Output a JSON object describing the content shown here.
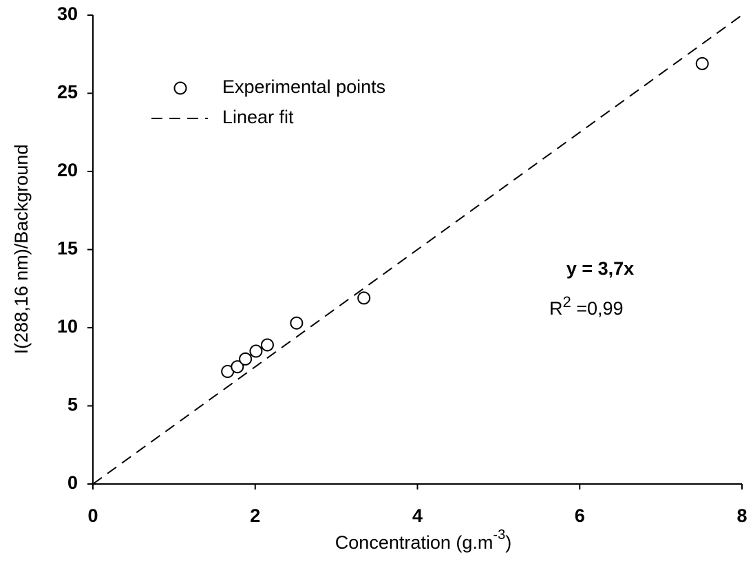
{
  "chart_data": {
    "type": "scatter",
    "x_label": [
      "Concentration (g.m",
      "-3",
      ")"
    ],
    "y_label": "I(288,16 nm)/Background",
    "series": [
      {
        "name": "Experimental points",
        "kind": "scatter",
        "color": "#000000",
        "x": [
          1.66,
          1.78,
          1.88,
          2.01,
          2.15,
          2.51,
          3.34,
          7.51
        ],
        "values": [
          7.2,
          7.5,
          8.0,
          8.5,
          8.9,
          10.3,
          11.9,
          26.9
        ]
      },
      {
        "name": "Linear fit",
        "kind": "line",
        "color": "#000000",
        "x": [
          0,
          8
        ],
        "values": [
          0,
          30
        ]
      }
    ],
    "annotations": [
      [
        "y = 3,7x"
      ],
      [
        "R",
        "2",
        " =0,99"
      ]
    ],
    "xlim": [
      0,
      8
    ],
    "xticks": [
      0,
      2,
      4,
      6,
      8
    ],
    "ylim": [
      0,
      30
    ],
    "yticks": [
      0,
      5,
      10,
      15,
      20,
      25,
      30
    ],
    "grid": false,
    "legend": "upper left"
  }
}
